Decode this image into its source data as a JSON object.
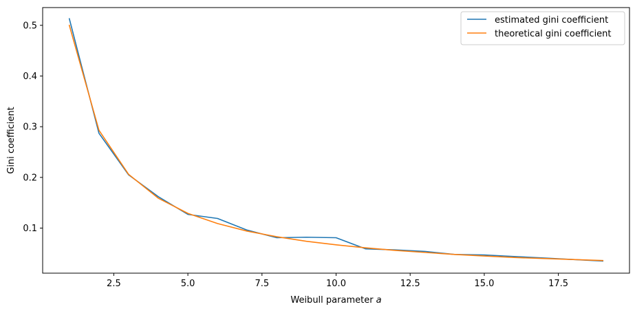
{
  "chart_data": {
    "type": "line",
    "xlabel": "Weibull parameter ",
    "xlabel_var": "a",
    "ylabel": "Gini coefficient",
    "xlim": [
      0.1,
      19.9
    ],
    "ylim": [
      0.0111,
      0.535
    ],
    "xticks": [
      2.5,
      5.0,
      7.5,
      10.0,
      12.5,
      15.0,
      17.5
    ],
    "xtick_labels": [
      "2.5",
      "5.0",
      "7.5",
      "10.0",
      "12.5",
      "15.0",
      "17.5"
    ],
    "yticks": [
      0.1,
      0.2,
      0.3,
      0.4,
      0.5
    ],
    "ytick_labels": [
      "0.1",
      "0.2",
      "0.3",
      "0.4",
      "0.5"
    ],
    "grid": false,
    "legend_position": "top-right",
    "x": [
      1,
      2,
      3,
      4,
      5,
      6,
      7,
      8,
      9,
      10,
      11,
      12,
      13,
      14,
      15,
      16,
      17,
      18,
      19
    ],
    "series": [
      {
        "name": "estimated gini coefficient",
        "color": "#1f77b4",
        "values": [
          0.513,
          0.287,
          0.205,
          0.162,
          0.127,
          0.119,
          0.096,
          0.081,
          0.082,
          0.081,
          0.059,
          0.057,
          0.054,
          0.048,
          0.047,
          0.044,
          0.041,
          0.038,
          0.035
        ]
      },
      {
        "name": "theoretical gini coefficient",
        "color": "#ff7f0e",
        "values": [
          0.5,
          0.293,
          0.206,
          0.159,
          0.129,
          0.109,
          0.094,
          0.083,
          0.074,
          0.067,
          0.061,
          0.056,
          0.052,
          0.048,
          0.045,
          0.042,
          0.04,
          0.038,
          0.036
        ]
      }
    ]
  }
}
